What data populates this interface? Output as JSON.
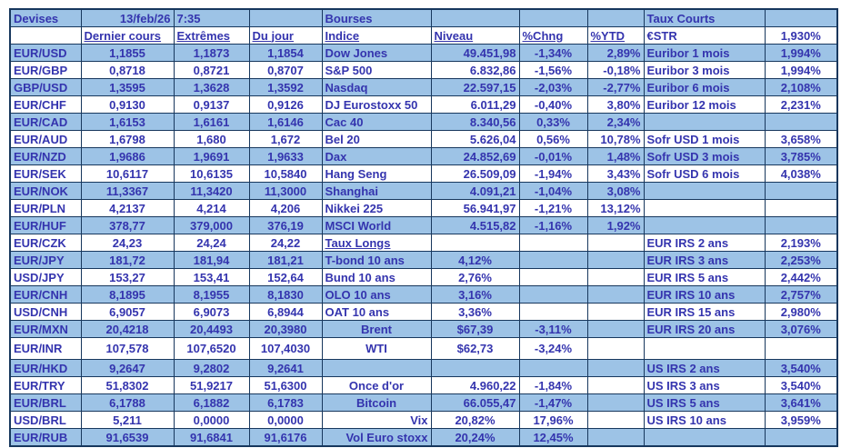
{
  "colors": {
    "band_blue": "#9DC3E6",
    "text_blue": "#3434AE",
    "border_navy": "#17375D",
    "background": "#ffffff"
  },
  "titles": {
    "devises": "Devises",
    "date": "13/feb/26",
    "time": "7:35",
    "bourses": "Bourses",
    "taux_courts": "Taux Courts"
  },
  "headers": {
    "dernier_cours": "Dernier cours",
    "extremes": "Extrêmes",
    "du_jour": "Du jour",
    "indice": "Indice",
    "niveau": "Niveau",
    "chng": "%Chng",
    "ytd": "%YTD",
    "estr_label": "€STR",
    "estr_value": "1,930%"
  },
  "rows": [
    {
      "pair": "EUR/USD",
      "last": "1,1855",
      "ext": "1,1873",
      "jour": "1,1854",
      "idx": "Dow Jones",
      "niv": "49.451,98",
      "chg": "-1,34%",
      "ytd": "2,89%",
      "taux": "Euribor 1 mois",
      "tval": "1,994%"
    },
    {
      "pair": "EUR/GBP",
      "last": "0,8718",
      "ext": "0,8721",
      "jour": "0,8707",
      "idx": "S&P 500",
      "niv": "6.832,86",
      "chg": "-1,56%",
      "ytd": "-0,18%",
      "taux": "Euribor 3 mois",
      "tval": "1,994%"
    },
    {
      "pair": "GBP/USD",
      "last": "1,3595",
      "ext": "1,3628",
      "jour": "1,3592",
      "idx": "Nasdaq",
      "niv": "22.597,15",
      "chg": "-2,03%",
      "ytd": "-2,77%",
      "taux": "Euribor 6 mois",
      "tval": "2,108%"
    },
    {
      "pair": "EUR/CHF",
      "last": "0,9130",
      "ext": "0,9137",
      "jour": "0,9126",
      "idx": "DJ Eurostoxx 50",
      "niv": "6.011,29",
      "chg": "-0,40%",
      "ytd": "3,80%",
      "taux": "Euribor 12 mois",
      "tval": "2,231%"
    },
    {
      "pair": "EUR/CAD",
      "last": "1,6153",
      "ext": "1,6161",
      "jour": "1,6146",
      "idx": "Cac 40",
      "niv": "8.340,56",
      "chg": "0,33%",
      "ytd": "2,34%",
      "taux": "",
      "tval": ""
    },
    {
      "pair": "EUR/AUD",
      "last": "1,6798",
      "ext": "1,680",
      "jour": "1,672",
      "idx": "Bel 20",
      "niv": "5.626,04",
      "chg": "0,56%",
      "ytd": "10,78%",
      "taux": "Sofr USD 1 mois",
      "tval": "3,658%"
    },
    {
      "pair": "EUR/NZD",
      "last": "1,9686",
      "ext": "1,9691",
      "jour": "1,9633",
      "idx": "Dax",
      "niv": "24.852,69",
      "chg": "-0,01%",
      "ytd": "1,48%",
      "taux": "Sofr USD 3 mois",
      "tval": "3,785%"
    },
    {
      "pair": "EUR/SEK",
      "last": "10,6117",
      "ext": "10,6135",
      "jour": "10,5840",
      "idx": "Hang Seng",
      "niv": "26.509,09",
      "chg": "-1,94%",
      "ytd": "3,43%",
      "taux": "Sofr USD 6 mois",
      "tval": "4,038%"
    },
    {
      "pair": "EUR/NOK",
      "last": "11,3367",
      "ext": "11,3420",
      "jour": "11,3000",
      "idx": "Shanghai",
      "niv": "4.091,21",
      "chg": "-1,04%",
      "ytd": "3,08%",
      "taux": "",
      "tval": ""
    },
    {
      "pair": "EUR/PLN",
      "last": "4,2137",
      "ext": "4,214",
      "jour": "4,206",
      "idx": "Nikkei 225",
      "niv": "56.941,97",
      "chg": "-1,21%",
      "ytd": "13,12%",
      "taux": "",
      "tval": ""
    },
    {
      "pair": "EUR/HUF",
      "last": "378,77",
      "ext": "379,000",
      "jour": "376,19",
      "idx": "MSCI World",
      "niv": "4.515,82",
      "chg": "-1,16%",
      "ytd": "1,92%",
      "taux": "",
      "tval": ""
    },
    {
      "pair": "EUR/CZK",
      "last": "24,23",
      "ext": "24,24",
      "jour": "24,22",
      "idx": "Taux Longs",
      "idx_u": true,
      "niv": "",
      "chg": "",
      "ytd": "",
      "taux": "EUR IRS 2 ans",
      "tval": "2,193%"
    },
    {
      "pair": "EUR/JPY",
      "last": "181,72",
      "ext": "181,94",
      "jour": "181,21",
      "idx": "T-bond 10 ans",
      "niv": "4,12%",
      "chg": "",
      "ytd": "",
      "taux": "EUR IRS 3 ans",
      "tval": "2,253%"
    },
    {
      "pair": "USD/JPY",
      "last": "153,27",
      "ext": "153,41",
      "jour": "152,64",
      "idx": "Bund 10 ans",
      "niv": "2,76%",
      "chg": "",
      "ytd": "",
      "taux": "EUR IRS 5 ans",
      "tval": "2,442%"
    },
    {
      "pair": "EUR/CNH",
      "last": "8,1895",
      "ext": "8,1955",
      "jour": "8,1830",
      "idx": "OLO 10 ans",
      "niv": "3,16%",
      "chg": "",
      "ytd": "",
      "taux": "EUR IRS 10 ans",
      "tval": "2,757%"
    },
    {
      "pair": "USD/CNH",
      "last": "6,9057",
      "ext": "6,9073",
      "jour": "6,8944",
      "idx": "OAT 10 ans",
      "niv": "3,36%",
      "chg": "",
      "ytd": "",
      "taux": "EUR IRS 15 ans",
      "tval": "2,980%"
    },
    {
      "pair": "EUR/MXN",
      "last": "20,4218",
      "ext": "20,4493",
      "jour": "20,3980",
      "idx": "Brent",
      "ia": "c",
      "niv": "$67,39",
      "chg": "-3,11%",
      "ytd": "",
      "taux": "EUR IRS 20 ans",
      "tval": "3,076%"
    },
    {
      "pair": "EUR/INR",
      "last": "107,578",
      "ext": "107,6520",
      "jour": "107,4030",
      "idx": "WTI",
      "ia": "c",
      "niv": "$62,73",
      "chg": "-3,24%",
      "ytd": "",
      "taux": "",
      "tval": "",
      "tall": true
    },
    {
      "pair": "EUR/HKD",
      "last": "9,2647",
      "ext": "9,2802",
      "jour": "9,2641",
      "idx": "",
      "niv": "",
      "chg": "",
      "ytd": "",
      "taux": "US IRS 2 ans",
      "tval": "3,540%"
    },
    {
      "pair": "EUR/TRY",
      "last": "51,8302",
      "ext": "51,9217",
      "jour": "51,6300",
      "idx": "Once d'or",
      "ia": "c",
      "niv": "4.960,22",
      "chg": "-1,84%",
      "ytd": "",
      "taux": "US IRS 3 ans",
      "tval": "3,540%"
    },
    {
      "pair": "EUR/BRL",
      "last": "6,1788",
      "ext": "6,1882",
      "jour": "6,1783",
      "idx": "Bitcoin",
      "ia": "c",
      "niv": "66.055,47",
      "chg": "-1,47%",
      "ytd": "",
      "taux": "US IRS 5 ans",
      "tval": "3,641%"
    },
    {
      "pair": "USD/BRL",
      "last": "5,211",
      "ext": "0,0000",
      "jour": "0,0000",
      "idx": "Vix",
      "ia": "r",
      "niv": "20,82%",
      "chg": "17,96%",
      "ytd": "",
      "taux": "US IRS 10 ans",
      "tval": "3,959%"
    },
    {
      "pair": "EUR/RUB",
      "last": "91,6539",
      "ext": "91,6841",
      "jour": "91,6176",
      "idx": "Vol Euro stoxx",
      "ia": "r",
      "niv": "20,24%",
      "chg": "12,45%",
      "ytd": "",
      "taux": "",
      "tval": ""
    }
  ]
}
